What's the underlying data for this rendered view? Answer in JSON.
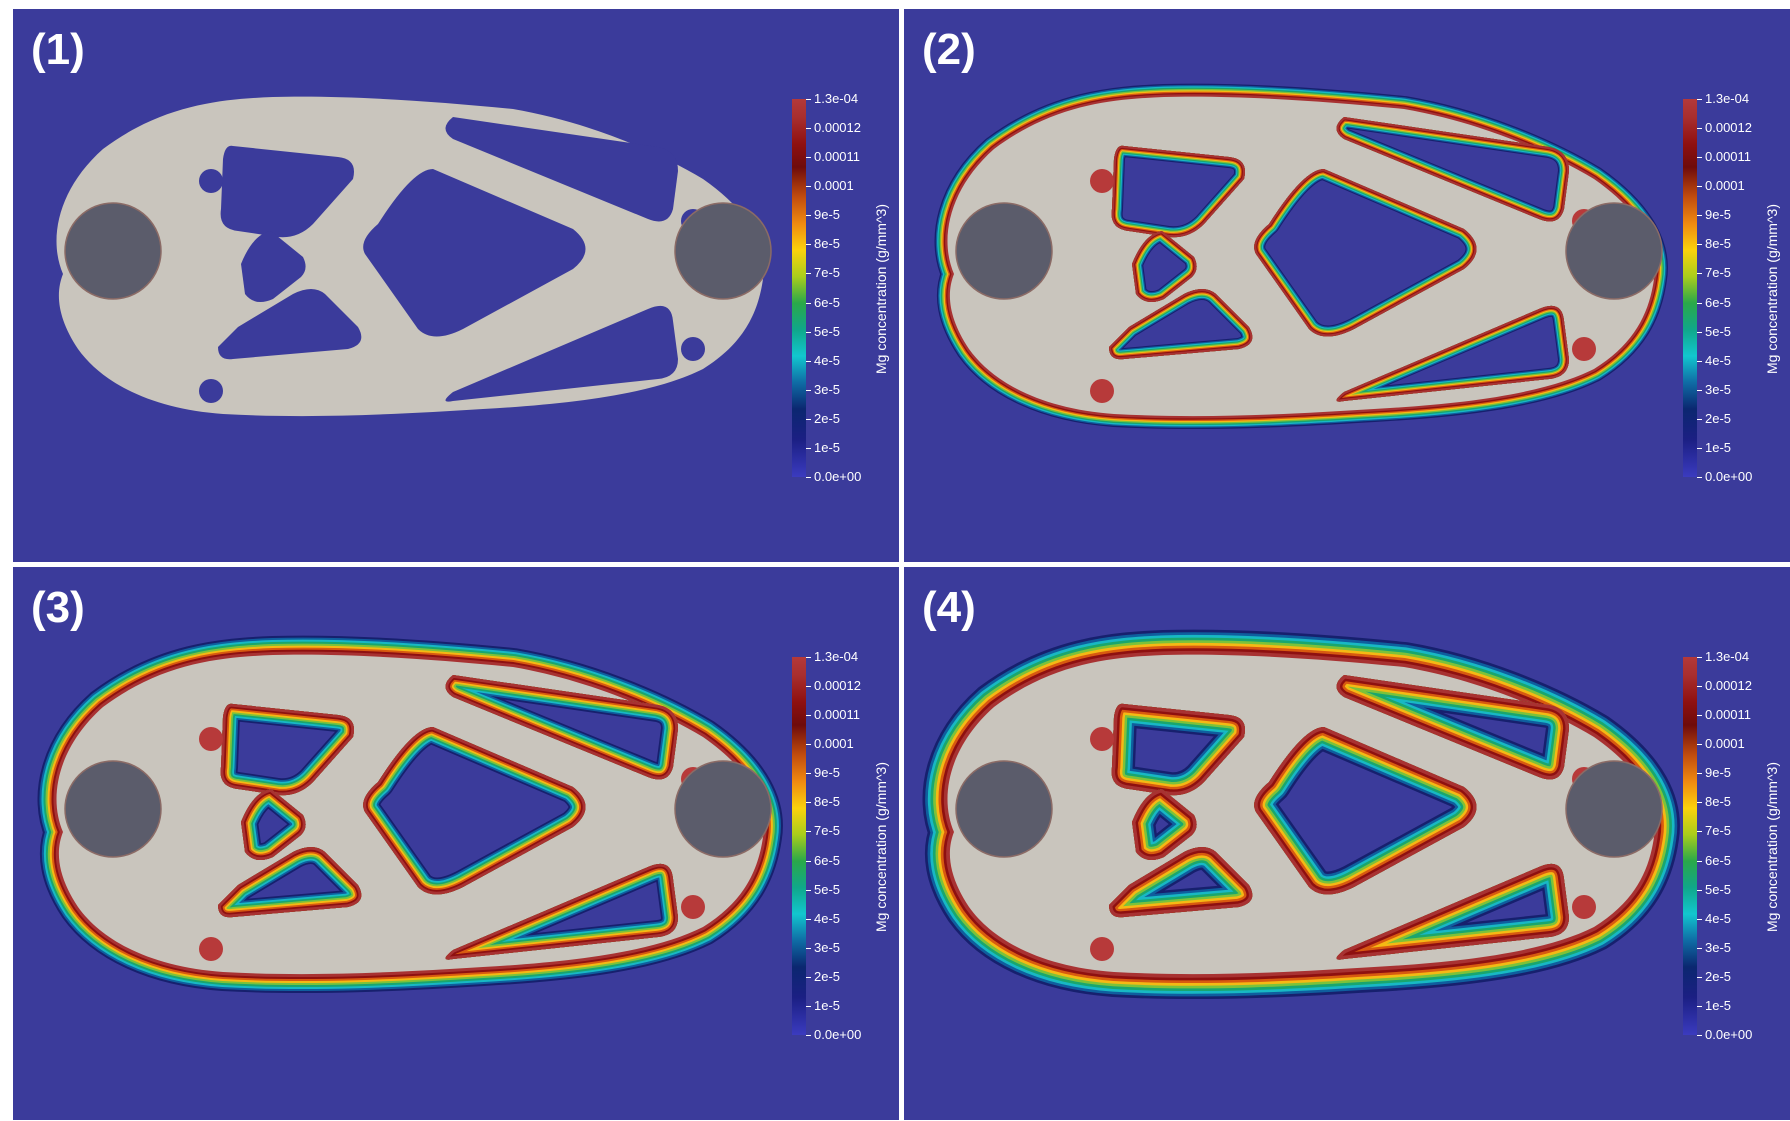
{
  "panels": [
    {
      "label": "(1)",
      "stage": 0
    },
    {
      "label": "(2)",
      "stage": 1
    },
    {
      "label": "(3)",
      "stage": 2
    },
    {
      "label": "(4)",
      "stage": 3
    }
  ],
  "colorbar": {
    "title": "Mg concentration (g/mm^3)",
    "ticks": [
      "1.3e-04",
      "0.00012",
      "0.00011",
      "0.0001",
      "9e-5",
      "8e-5",
      "7e-5",
      "6e-5",
      "5e-5",
      "4e-5",
      "3e-5",
      "2e-5",
      "1e-5",
      "0.0e+00"
    ],
    "max": 0.00013,
    "min": 0
  },
  "colors": {
    "background": "#3b3b9b",
    "part": "#c9c5bd",
    "pin": "#5b5c6b"
  }
}
